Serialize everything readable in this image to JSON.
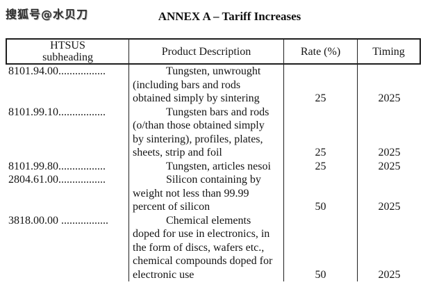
{
  "watermark": {
    "text": "搜狐号@水贝刀"
  },
  "title": "ANNEX A – Tariff Increases",
  "table": {
    "headers": {
      "htsus": [
        "HTSUS",
        "subheading"
      ],
      "description": "Product Description",
      "rate": "Rate (%)",
      "timing": "Timing"
    },
    "rows": [
      {
        "code": "8101.94.00.................",
        "description": [
          "Tungsten, unwrought",
          "(including bars and rods",
          "obtained simply by sintering"
        ],
        "rate": "25",
        "timing": "2025"
      },
      {
        "code": "8101.99.10.................",
        "description": [
          "Tungsten bars and rods",
          "(o/than those obtained simply",
          "by sintering), profiles, plates,",
          "sheets, strip and foil"
        ],
        "rate": "25",
        "timing": "2025"
      },
      {
        "code": "8101.99.80.................",
        "description": [
          "Tungsten, articles nesoi"
        ],
        "rate": "25",
        "timing": "2025"
      },
      {
        "code": "2804.61.00.................",
        "description": [
          "Silicon containing by",
          "weight not less than 99.99",
          "percent of silicon"
        ],
        "rate": "50",
        "timing": "2025"
      },
      {
        "code": "3818.00.00 .................",
        "description": [
          "Chemical elements",
          "doped for use in electronics, in",
          "the form of discs, wafers etc.,",
          "chemical compounds doped for",
          "electronic use"
        ],
        "rate": "50",
        "timing": "2025"
      }
    ]
  }
}
